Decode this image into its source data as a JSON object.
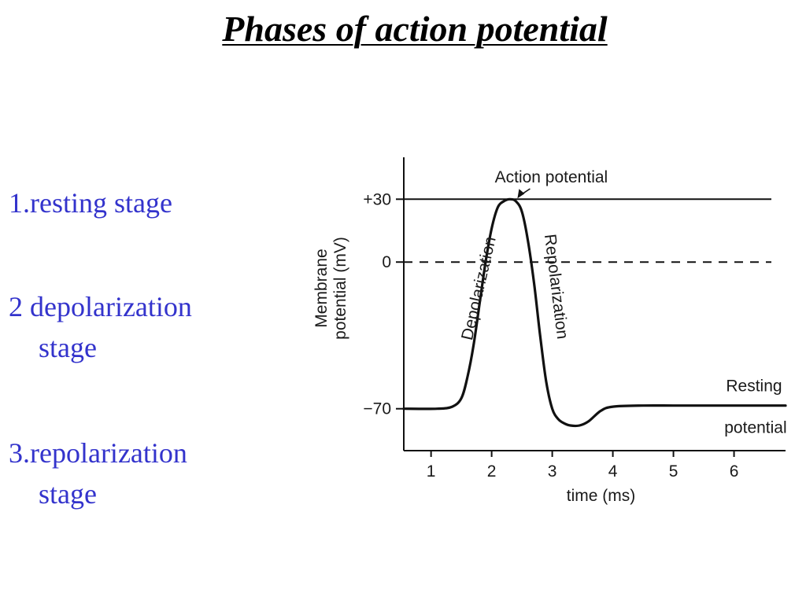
{
  "slide": {
    "title": "Phases of action potential",
    "stages": [
      {
        "line1": "1.resting stage",
        "line2": ""
      },
      {
        "line1": "2 depolarization",
        "line2": "stage"
      },
      {
        "line1": "3.repolarization",
        "line2": "stage"
      }
    ]
  },
  "chart_data": {
    "type": "line",
    "title": "",
    "xlabel": "time (ms)",
    "ylabel": "Membrane potential (mV)",
    "xlim": [
      0.55,
      6.85
    ],
    "ylim": [
      -90,
      50
    ],
    "x_ticks": [
      1,
      2,
      3,
      4,
      5,
      6
    ],
    "y_ticks": [
      {
        "value": 30,
        "label": "+30"
      },
      {
        "value": 0,
        "label": "0"
      },
      {
        "value": -70,
        "label": "−70"
      }
    ],
    "reference_lines": [
      {
        "y": 30,
        "style": "solid"
      },
      {
        "y": 0,
        "style": "dashed"
      }
    ],
    "grid": false,
    "legend": "none",
    "series": [
      {
        "x": [
          0.55,
          1.1,
          1.35,
          1.5,
          1.6,
          1.7,
          1.8,
          1.9,
          2.0,
          2.1,
          2.2,
          2.3,
          2.4,
          2.5,
          2.6,
          2.7,
          2.8,
          2.9,
          3.0,
          3.1,
          3.2,
          3.3,
          3.45,
          3.6,
          3.8,
          4.0,
          4.5,
          5.0,
          5.5,
          6.0,
          6.5,
          6.85
        ],
        "y": [
          -70,
          -70,
          -69,
          -65,
          -55,
          -40,
          -20,
          0,
          16,
          26,
          29,
          30,
          29,
          24,
          10,
          -10,
          -35,
          -57,
          -70,
          -75,
          -77,
          -78,
          -78,
          -76,
          -71,
          -69,
          -68.5,
          -68.5,
          -68.5,
          -68.5,
          -68.5,
          -68.5
        ]
      }
    ],
    "annotations": [
      {
        "text": "Action potential",
        "x": 2.4,
        "y": 30,
        "arrow": true
      },
      {
        "text": "Depolarization",
        "x": 1.95,
        "y": -15,
        "rotation": "vertical-up"
      },
      {
        "text": "Repolarization",
        "x": 2.85,
        "y": -15,
        "rotation": "vertical-down"
      },
      {
        "text": "Resting",
        "x": 6.2,
        "y": -61
      },
      {
        "text": "potential",
        "x": 6.2,
        "y": -77
      }
    ]
  }
}
